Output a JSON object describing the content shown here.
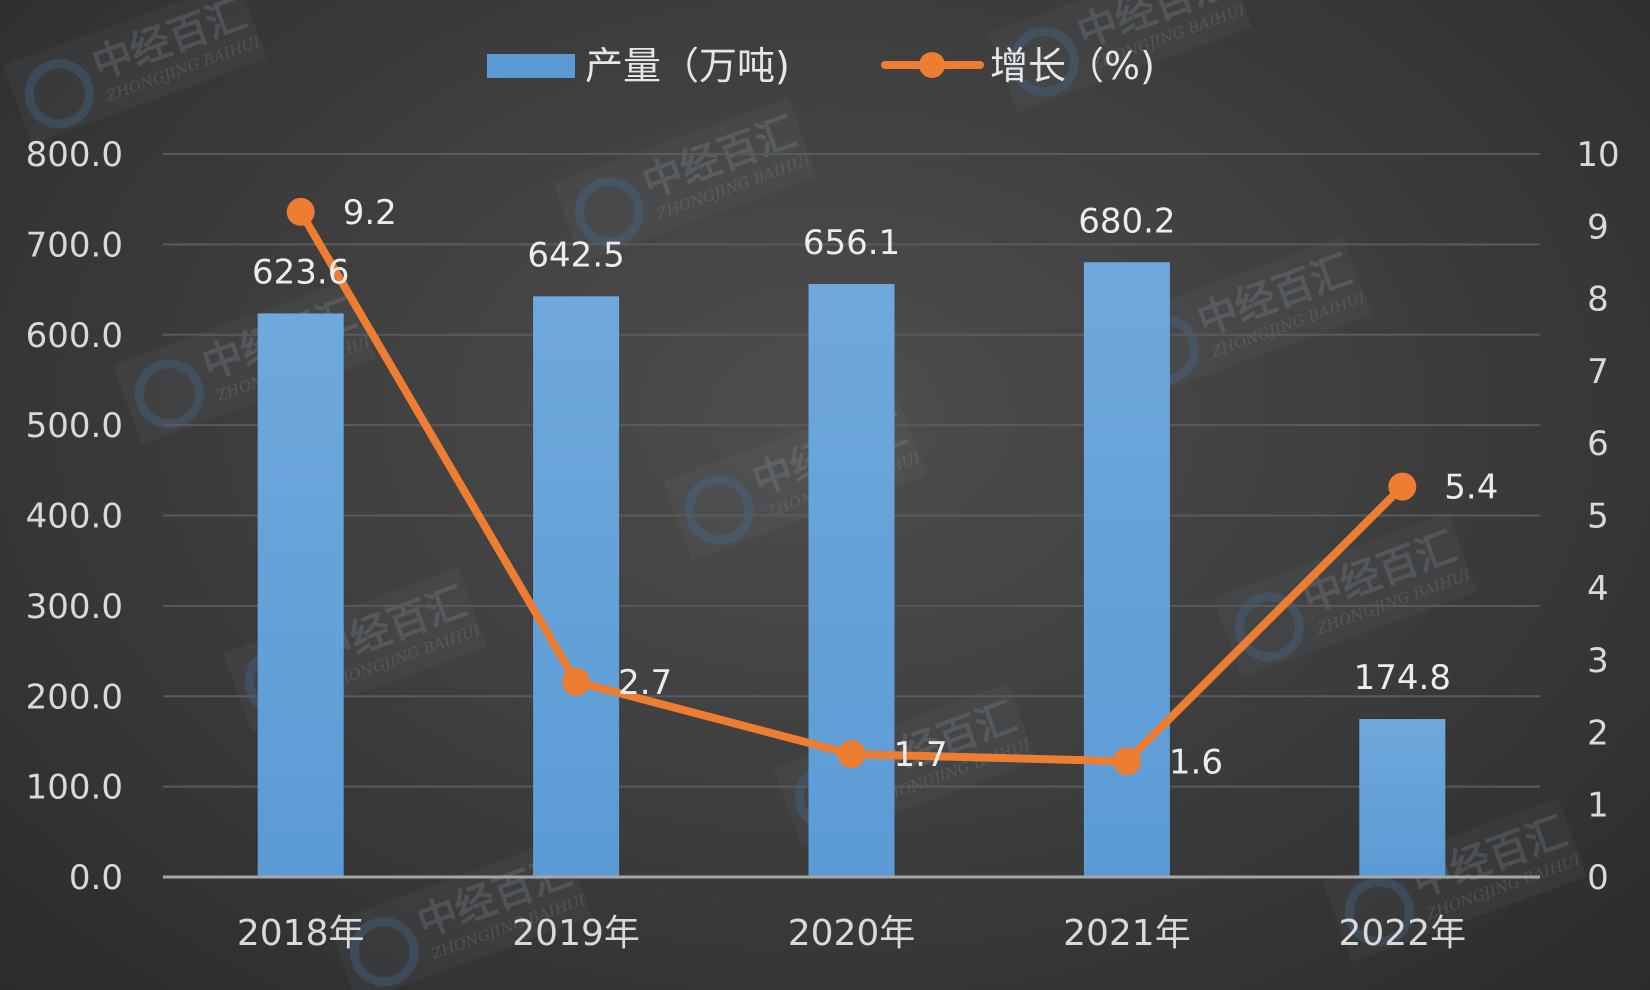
{
  "watermark": {
    "cn": "中经百汇",
    "en": "ZHONGJING BAIHUI"
  },
  "colors": {
    "bar": "#5b9bd5",
    "line": "#ed7d31",
    "grid": "#5a5a5a",
    "axis": "#a6a6a6",
    "text": "#d9d9d9"
  },
  "chart_data": {
    "type": "bar",
    "categories": [
      "2018年",
      "2019年",
      "2020年",
      "2021年",
      "2022年"
    ],
    "series": [
      {
        "name": "产量（万吨)",
        "kind": "bar",
        "axis": "left",
        "values": [
          623.6,
          642.5,
          656.1,
          680.2,
          174.8
        ],
        "labels": [
          "623.6",
          "642.5",
          "656.1",
          "680.2",
          "174.8"
        ]
      },
      {
        "name": "增长（%)",
        "kind": "line",
        "axis": "right",
        "values": [
          9.2,
          2.7,
          1.7,
          1.6,
          5.4
        ],
        "labels": [
          "9.2",
          "2.7",
          "1.7",
          "1.6",
          "5.4"
        ]
      }
    ],
    "y_left": {
      "ylim": [
        0,
        800
      ],
      "ticks": [
        "0.0",
        "100.0",
        "200.0",
        "300.0",
        "400.0",
        "500.0",
        "600.0",
        "700.0",
        "800.0"
      ]
    },
    "y_right": {
      "ylim": [
        0,
        10
      ],
      "ticks": [
        "0",
        "1",
        "2",
        "3",
        "4",
        "5",
        "6",
        "7",
        "8",
        "9",
        "10"
      ]
    },
    "grid": true,
    "legend": "top-center"
  }
}
